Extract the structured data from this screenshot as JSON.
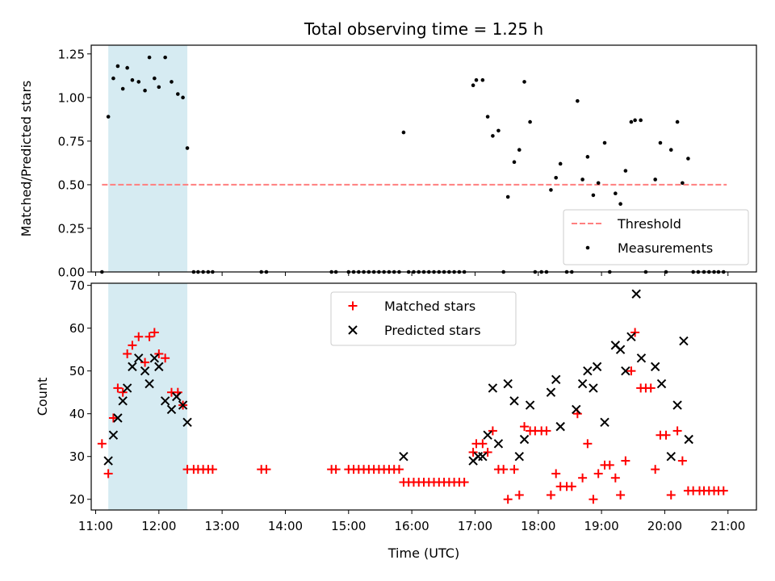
{
  "chart_data": [
    {
      "type": "scatter",
      "title": "Total observing time = 1.25 h",
      "xlabel": "",
      "ylabel": "Matched/Predicted stars",
      "xlim": [
        10.93,
        21.45
      ],
      "ylim": [
        0,
        1.3
      ],
      "yticks": [
        0.0,
        0.25,
        0.5,
        0.75,
        1.0,
        1.25
      ],
      "ytick_labels": [
        "0.00",
        "0.25",
        "0.50",
        "0.75",
        "1.00",
        "1.25"
      ],
      "grid": false,
      "legend": "lower right",
      "highlight_span": {
        "x_start": 11.2,
        "x_end": 12.45,
        "color": "#add8e6"
      },
      "series": [
        {
          "name": "Threshold",
          "style": "dashed-line",
          "color": "#ff7f7f",
          "x": [
            11.1,
            20.98
          ],
          "y": [
            0.5,
            0.5
          ]
        },
        {
          "name": "Measurements",
          "style": "dot",
          "color": "#000000",
          "points": [
            [
              11.1,
              0.0
            ],
            [
              11.2,
              0.89
            ],
            [
              11.28,
              1.11
            ],
            [
              11.35,
              1.18
            ],
            [
              11.43,
              1.05
            ],
            [
              11.5,
              1.17
            ],
            [
              11.58,
              1.1
            ],
            [
              11.68,
              1.09
            ],
            [
              11.78,
              1.04
            ],
            [
              11.85,
              1.23
            ],
            [
              11.93,
              1.11
            ],
            [
              12.0,
              1.06
            ],
            [
              12.1,
              1.23
            ],
            [
              12.2,
              1.09
            ],
            [
              12.3,
              1.02
            ],
            [
              12.38,
              1.0
            ],
            [
              12.45,
              0.71
            ],
            [
              12.55,
              0.0
            ],
            [
              12.62,
              0.0
            ],
            [
              12.7,
              0.0
            ],
            [
              12.78,
              0.0
            ],
            [
              12.85,
              0.0
            ],
            [
              13.62,
              0.0
            ],
            [
              13.7,
              0.0
            ],
            [
              14.73,
              0.0
            ],
            [
              14.8,
              0.0
            ],
            [
              15.0,
              0.0
            ],
            [
              15.08,
              0.0
            ],
            [
              15.16,
              0.0
            ],
            [
              15.24,
              0.0
            ],
            [
              15.32,
              0.0
            ],
            [
              15.4,
              0.0
            ],
            [
              15.48,
              0.0
            ],
            [
              15.56,
              0.0
            ],
            [
              15.64,
              0.0
            ],
            [
              15.72,
              0.0
            ],
            [
              15.8,
              0.0
            ],
            [
              15.87,
              0.8
            ],
            [
              15.95,
              0.0
            ],
            [
              16.03,
              0.0
            ],
            [
              16.11,
              0.0
            ],
            [
              16.19,
              0.0
            ],
            [
              16.27,
              0.0
            ],
            [
              16.35,
              0.0
            ],
            [
              16.43,
              0.0
            ],
            [
              16.51,
              0.0
            ],
            [
              16.59,
              0.0
            ],
            [
              16.67,
              0.0
            ],
            [
              16.75,
              0.0
            ],
            [
              16.83,
              0.0
            ],
            [
              16.97,
              1.07
            ],
            [
              17.02,
              1.1
            ],
            [
              17.12,
              1.1
            ],
            [
              17.2,
              0.89
            ],
            [
              17.28,
              0.78
            ],
            [
              17.37,
              0.81
            ],
            [
              17.45,
              0.0
            ],
            [
              17.52,
              0.43
            ],
            [
              17.62,
              0.63
            ],
            [
              17.7,
              0.7
            ],
            [
              17.78,
              1.09
            ],
            [
              17.87,
              0.86
            ],
            [
              17.95,
              0.0
            ],
            [
              18.05,
              0.0
            ],
            [
              18.13,
              0.0
            ],
            [
              18.2,
              0.47
            ],
            [
              18.28,
              0.54
            ],
            [
              18.35,
              0.62
            ],
            [
              18.45,
              0.0
            ],
            [
              18.53,
              0.0
            ],
            [
              18.62,
              0.98
            ],
            [
              18.7,
              0.53
            ],
            [
              18.78,
              0.66
            ],
            [
              18.87,
              0.44
            ],
            [
              18.95,
              0.51
            ],
            [
              19.05,
              0.74
            ],
            [
              19.13,
              0.0
            ],
            [
              19.22,
              0.45
            ],
            [
              19.3,
              0.39
            ],
            [
              19.38,
              0.58
            ],
            [
              19.47,
              0.86
            ],
            [
              19.53,
              0.87
            ],
            [
              19.62,
              0.87
            ],
            [
              19.7,
              0.0
            ],
            [
              19.85,
              0.53
            ],
            [
              19.93,
              0.74
            ],
            [
              20.02,
              0.0
            ],
            [
              20.1,
              0.7
            ],
            [
              20.2,
              0.86
            ],
            [
              20.28,
              0.51
            ],
            [
              20.37,
              0.65
            ],
            [
              20.45,
              0.0
            ],
            [
              20.53,
              0.0
            ],
            [
              20.62,
              0.0
            ],
            [
              20.7,
              0.0
            ],
            [
              20.78,
              0.0
            ],
            [
              20.85,
              0.0
            ],
            [
              20.93,
              0.0
            ]
          ]
        }
      ]
    },
    {
      "type": "scatter",
      "title": "",
      "xlabel": "Time (UTC)",
      "ylabel": "Count",
      "xlim": [
        10.93,
        21.45
      ],
      "ylim": [
        17.5,
        70.5
      ],
      "xticks": [
        11,
        12,
        13,
        14,
        15,
        16,
        17,
        18,
        19,
        20,
        21
      ],
      "xtick_labels": [
        "11:00",
        "12:00",
        "13:00",
        "14:00",
        "15:00",
        "16:00",
        "17:00",
        "18:00",
        "19:00",
        "20:00",
        "21:00"
      ],
      "yticks": [
        20,
        30,
        40,
        50,
        60,
        70
      ],
      "ytick_labels": [
        "20",
        "30",
        "40",
        "50",
        "60",
        "70"
      ],
      "grid": false,
      "legend": "upper center",
      "highlight_span": {
        "x_start": 11.2,
        "x_end": 12.45,
        "color": "#add8e6"
      },
      "series": [
        {
          "name": "Matched stars",
          "marker": "+",
          "color": "#ff0000",
          "points": [
            [
              11.1,
              33
            ],
            [
              11.2,
              26
            ],
            [
              11.28,
              39
            ],
            [
              11.35,
              46
            ],
            [
              11.43,
              45
            ],
            [
              11.5,
              54
            ],
            [
              11.58,
              56
            ],
            [
              11.68,
              58
            ],
            [
              11.78,
              52
            ],
            [
              11.85,
              58
            ],
            [
              11.93,
              59
            ],
            [
              12.0,
              54
            ],
            [
              12.1,
              53
            ],
            [
              12.2,
              45
            ],
            [
              12.3,
              45
            ],
            [
              12.38,
              42
            ],
            [
              12.45,
              27
            ],
            [
              12.55,
              27
            ],
            [
              12.62,
              27
            ],
            [
              12.7,
              27
            ],
            [
              12.78,
              27
            ],
            [
              12.85,
              27
            ],
            [
              13.62,
              27
            ],
            [
              13.7,
              27
            ],
            [
              14.73,
              27
            ],
            [
              14.8,
              27
            ],
            [
              15.0,
              27
            ],
            [
              15.08,
              27
            ],
            [
              15.16,
              27
            ],
            [
              15.24,
              27
            ],
            [
              15.32,
              27
            ],
            [
              15.4,
              27
            ],
            [
              15.48,
              27
            ],
            [
              15.56,
              27
            ],
            [
              15.64,
              27
            ],
            [
              15.72,
              27
            ],
            [
              15.8,
              27
            ],
            [
              15.87,
              24
            ],
            [
              15.95,
              24
            ],
            [
              16.03,
              24
            ],
            [
              16.11,
              24
            ],
            [
              16.19,
              24
            ],
            [
              16.27,
              24
            ],
            [
              16.35,
              24
            ],
            [
              16.43,
              24
            ],
            [
              16.51,
              24
            ],
            [
              16.59,
              24
            ],
            [
              16.67,
              24
            ],
            [
              16.75,
              24
            ],
            [
              16.83,
              24
            ],
            [
              16.97,
              31
            ],
            [
              17.02,
              33
            ],
            [
              17.12,
              33
            ],
            [
              17.2,
              31
            ],
            [
              17.28,
              36
            ],
            [
              17.37,
              27
            ],
            [
              17.45,
              27
            ],
            [
              17.52,
              20
            ],
            [
              17.62,
              27
            ],
            [
              17.7,
              21
            ],
            [
              17.78,
              37
            ],
            [
              17.87,
              36
            ],
            [
              17.95,
              36
            ],
            [
              18.05,
              36
            ],
            [
              18.13,
              36
            ],
            [
              18.2,
              21
            ],
            [
              18.28,
              26
            ],
            [
              18.35,
              23
            ],
            [
              18.45,
              23
            ],
            [
              18.53,
              23
            ],
            [
              18.62,
              40
            ],
            [
              18.7,
              25
            ],
            [
              18.78,
              33
            ],
            [
              18.87,
              20
            ],
            [
              18.95,
              26
            ],
            [
              19.05,
              28
            ],
            [
              19.13,
              28
            ],
            [
              19.22,
              25
            ],
            [
              19.3,
              21
            ],
            [
              19.38,
              29
            ],
            [
              19.47,
              50
            ],
            [
              19.53,
              59
            ],
            [
              19.62,
              46
            ],
            [
              19.7,
              46
            ],
            [
              19.78,
              46
            ],
            [
              19.85,
              27
            ],
            [
              19.93,
              35
            ],
            [
              20.02,
              35
            ],
            [
              20.1,
              21
            ],
            [
              20.2,
              36
            ],
            [
              20.28,
              29
            ],
            [
              20.37,
              22
            ],
            [
              20.45,
              22
            ],
            [
              20.55,
              22
            ],
            [
              20.62,
              22
            ],
            [
              20.7,
              22
            ],
            [
              20.78,
              22
            ],
            [
              20.85,
              22
            ],
            [
              20.93,
              22
            ]
          ]
        },
        {
          "name": "Predicted stars",
          "marker": "x",
          "color": "#000000",
          "points": [
            [
              11.2,
              29
            ],
            [
              11.28,
              35
            ],
            [
              11.35,
              39
            ],
            [
              11.43,
              43
            ],
            [
              11.5,
              46
            ],
            [
              11.58,
              51
            ],
            [
              11.68,
              53
            ],
            [
              11.78,
              50
            ],
            [
              11.85,
              47
            ],
            [
              11.93,
              53
            ],
            [
              12.0,
              51
            ],
            [
              12.1,
              43
            ],
            [
              12.2,
              41
            ],
            [
              12.28,
              44
            ],
            [
              12.38,
              42
            ],
            [
              12.45,
              38
            ],
            [
              15.87,
              30
            ],
            [
              16.97,
              29
            ],
            [
              17.05,
              30
            ],
            [
              17.12,
              30
            ],
            [
              17.2,
              35
            ],
            [
              17.28,
              46
            ],
            [
              17.37,
              33
            ],
            [
              17.52,
              47
            ],
            [
              17.62,
              43
            ],
            [
              17.7,
              30
            ],
            [
              17.78,
              34
            ],
            [
              17.87,
              42
            ],
            [
              18.2,
              45
            ],
            [
              18.28,
              48
            ],
            [
              18.35,
              37
            ],
            [
              18.6,
              41
            ],
            [
              18.7,
              47
            ],
            [
              18.78,
              50
            ],
            [
              18.87,
              46
            ],
            [
              18.93,
              51
            ],
            [
              19.05,
              38
            ],
            [
              19.22,
              56
            ],
            [
              19.3,
              55
            ],
            [
              19.38,
              50
            ],
            [
              19.47,
              58
            ],
            [
              19.55,
              68
            ],
            [
              19.63,
              53
            ],
            [
              19.85,
              51
            ],
            [
              19.95,
              47
            ],
            [
              20.1,
              30
            ],
            [
              20.2,
              42
            ],
            [
              20.3,
              57
            ],
            [
              20.38,
              34
            ]
          ]
        }
      ]
    }
  ]
}
